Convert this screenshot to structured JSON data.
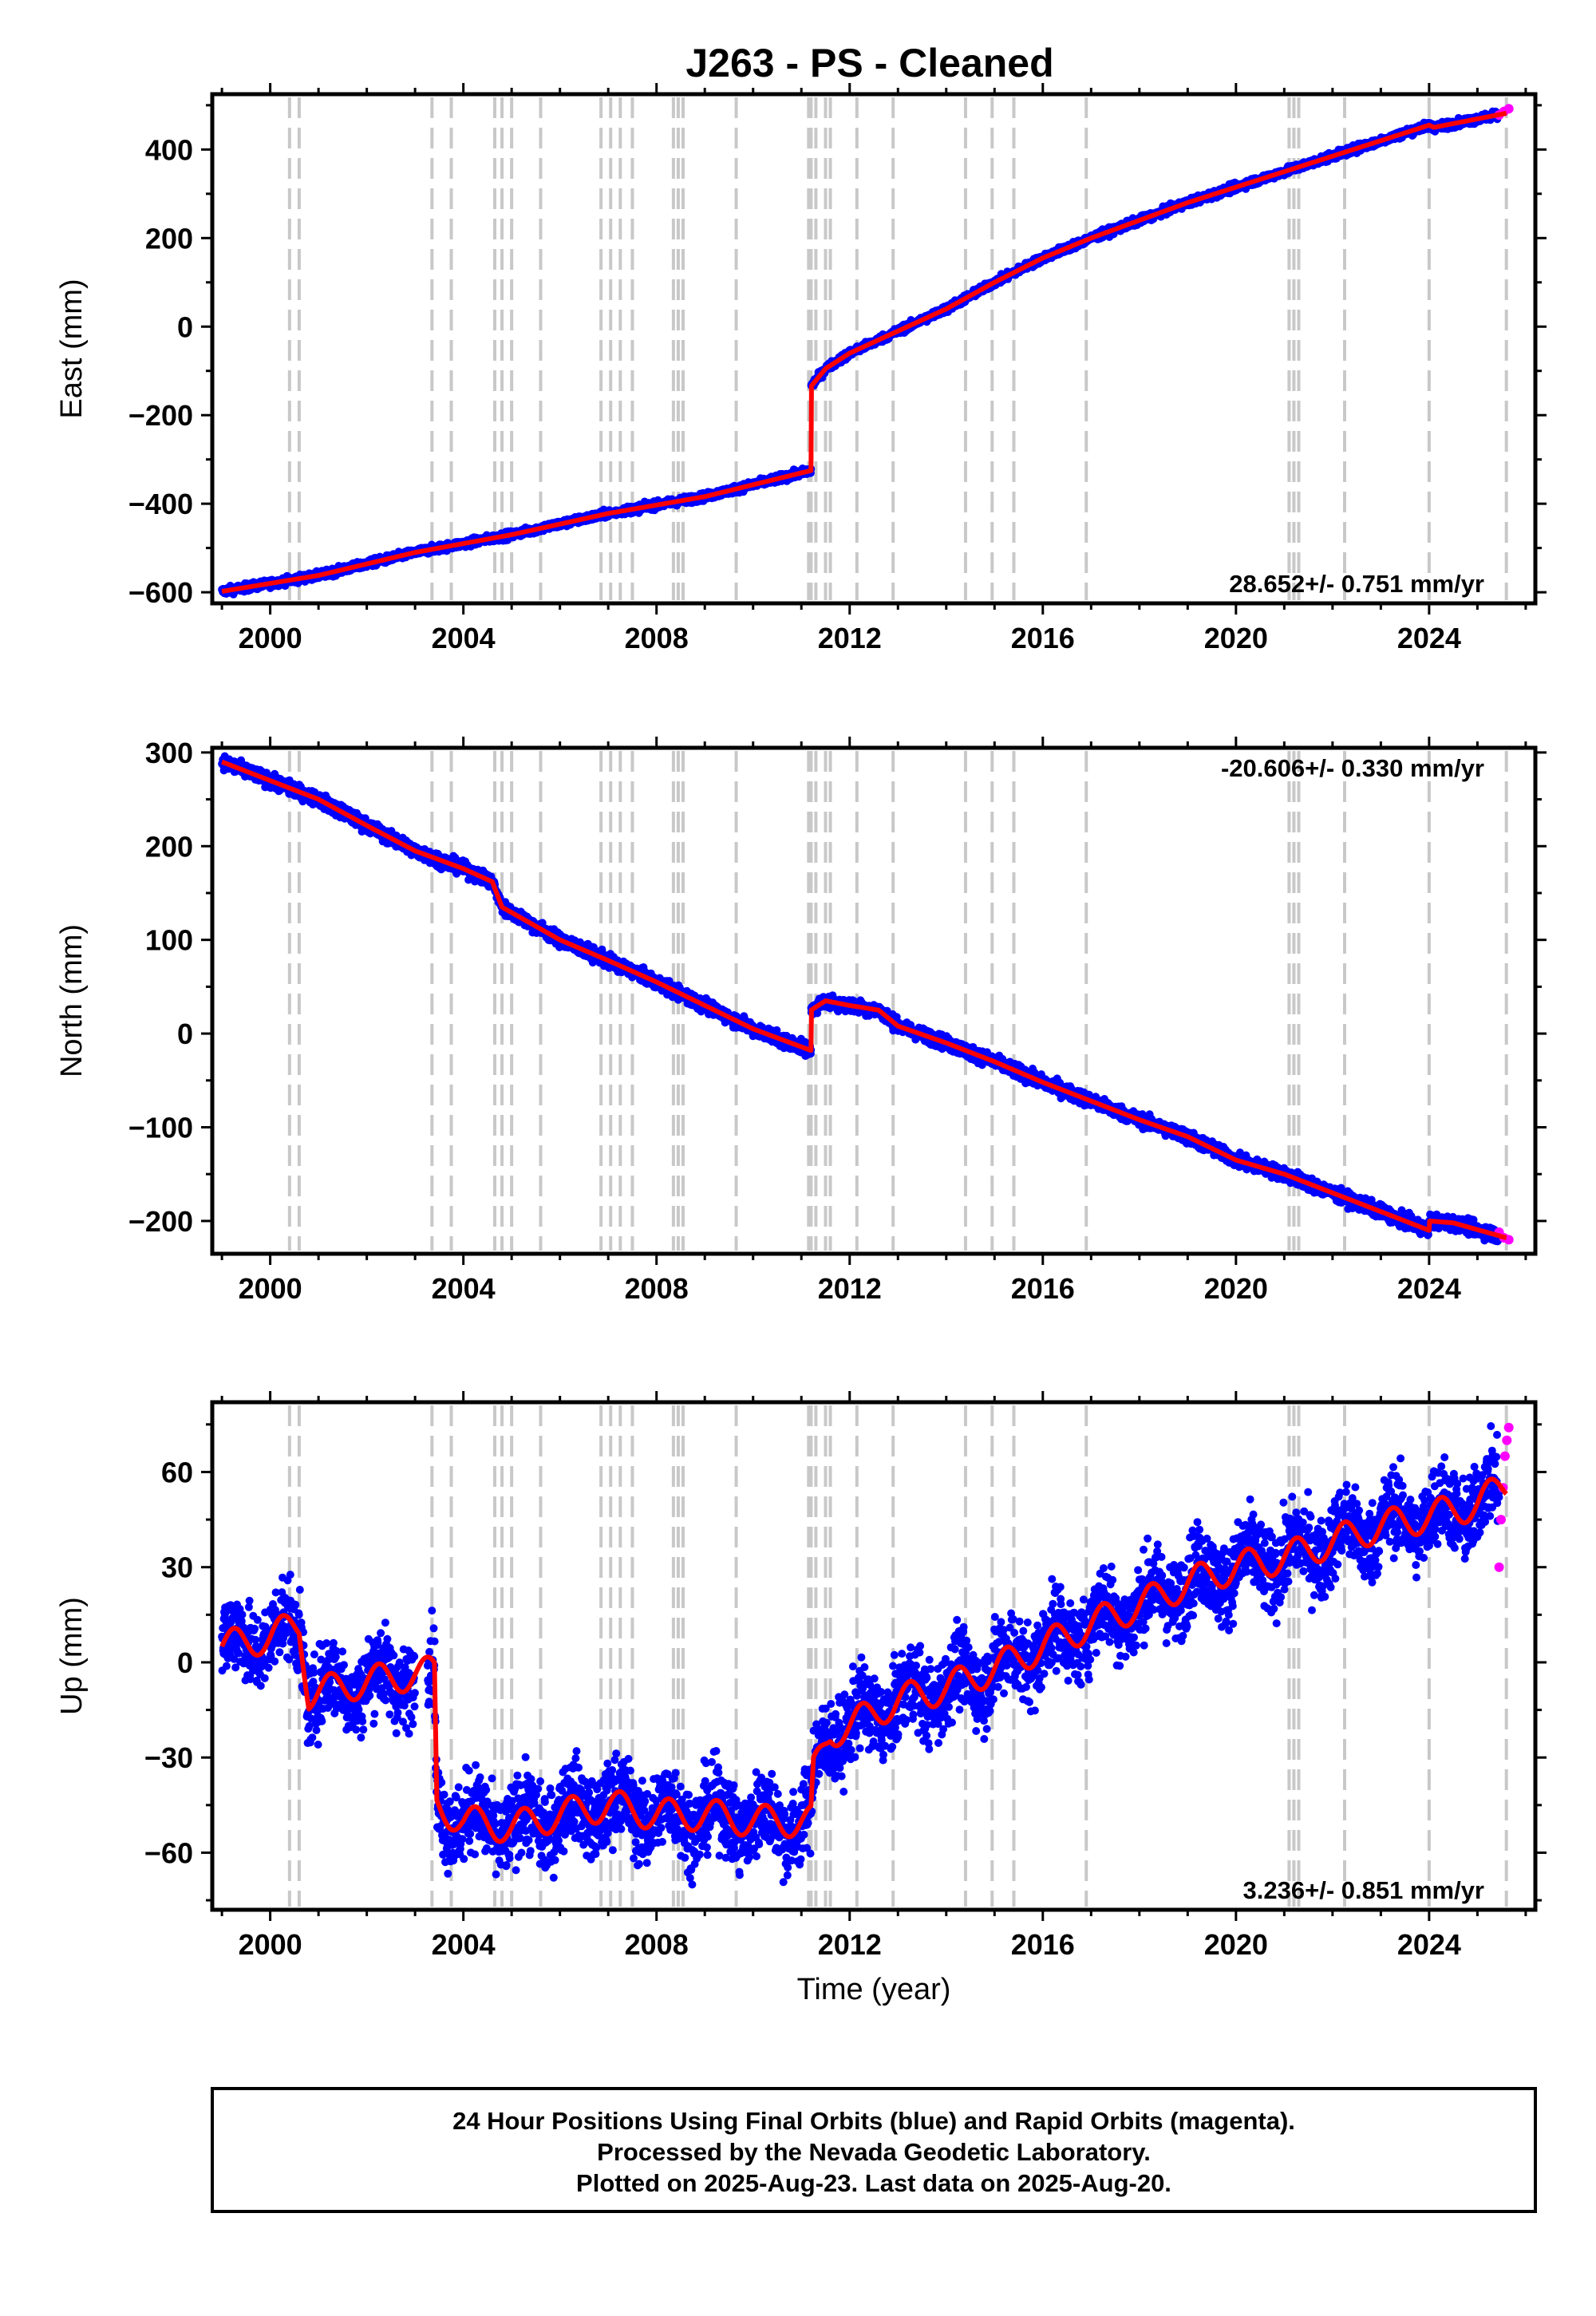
{
  "title": "J263  - PS - Cleaned",
  "caption": {
    "line1": "24 Hour Positions Using Final Orbits (blue) and Rapid Orbits (magenta).",
    "line2": "Processed by the Nevada Geodetic Laboratory.",
    "line3": "Plotted on 2025-Aug-23. Last data on 2025-Aug-20."
  },
  "colors": {
    "final": "#0000ff",
    "rapid": "#ff00ff",
    "model": "#ff0000",
    "event": "#c8c8c8"
  },
  "chart_data": [
    {
      "type": "scatter",
      "component": "east",
      "ylabel": "East (mm)",
      "xlabel": "",
      "xlim": [
        1998.8,
        2026.2
      ],
      "ylim": [
        -625,
        525
      ],
      "xticks": [
        2000,
        2004,
        2008,
        2012,
        2016,
        2020,
        2024
      ],
      "xtick_labels": [
        "2000",
        "2004",
        "2008",
        "2012",
        "2016",
        "2020",
        "2024"
      ],
      "yticks": [
        -600,
        -400,
        -200,
        0,
        200,
        400
      ],
      "ytick_labels": [
        "−600",
        "−400",
        "−200",
        "0",
        "200",
        "400"
      ],
      "rate_label": "28.652+/- 0.751 mm/yr",
      "rate_position": "bottom-right",
      "model": [
        [
          1999.0,
          -598
        ],
        [
          2001.0,
          -562
        ],
        [
          2003.0,
          -510
        ],
        [
          2005.0,
          -470
        ],
        [
          2007.0,
          -422
        ],
        [
          2009.0,
          -384
        ],
        [
          2011.2,
          -325
        ],
        [
          2011.2,
          -135
        ],
        [
          2011.5,
          -95
        ],
        [
          2012.0,
          -60
        ],
        [
          2013.0,
          -10
        ],
        [
          2014.0,
          40
        ],
        [
          2015.0,
          100
        ],
        [
          2016.0,
          155
        ],
        [
          2017.0,
          200
        ],
        [
          2018.0,
          240
        ],
        [
          2019.0,
          280
        ],
        [
          2020.0,
          315
        ],
        [
          2021.0,
          350
        ],
        [
          2022.0,
          385
        ],
        [
          2023.0,
          420
        ],
        [
          2024.0,
          455
        ],
        [
          2024.1,
          450
        ],
        [
          2025.6,
          482
        ]
      ],
      "noise_mm": 6,
      "rapid_range": [
        2025.45,
        2025.65
      ],
      "rapid_values": [
        478,
        486,
        492
      ]
    },
    {
      "type": "scatter",
      "component": "north",
      "ylabel": "North (mm)",
      "xlabel": "",
      "xlim": [
        1998.8,
        2026.2
      ],
      "ylim": [
        -235,
        305
      ],
      "xticks": [
        2000,
        2004,
        2008,
        2012,
        2016,
        2020,
        2024
      ],
      "xtick_labels": [
        "2000",
        "2004",
        "2008",
        "2012",
        "2016",
        "2020",
        "2024"
      ],
      "yticks": [
        -200,
        -100,
        0,
        100,
        200,
        300
      ],
      "ytick_labels": [
        "−200",
        "−100",
        "0",
        "100",
        "200",
        "300"
      ],
      "rate_label": "-20.606+/- 0.330 mm/yr",
      "rate_position": "top-right",
      "model": [
        [
          1999.0,
          290
        ],
        [
          2000.0,
          270
        ],
        [
          2001.0,
          250
        ],
        [
          2002.0,
          222
        ],
        [
          2003.0,
          195
        ],
        [
          2004.0,
          176
        ],
        [
          2004.6,
          162
        ],
        [
          2004.8,
          135
        ],
        [
          2006.0,
          100
        ],
        [
          2007.0,
          78
        ],
        [
          2008.0,
          55
        ],
        [
          2009.0,
          30
        ],
        [
          2010.0,
          5
        ],
        [
          2011.2,
          -18
        ],
        [
          2011.2,
          25
        ],
        [
          2011.5,
          35
        ],
        [
          2012.0,
          30
        ],
        [
          2012.6,
          25
        ],
        [
          2013.0,
          8
        ],
        [
          2014.0,
          -10
        ],
        [
          2015.0,
          -30
        ],
        [
          2016.0,
          -52
        ],
        [
          2017.0,
          -72
        ],
        [
          2018.0,
          -92
        ],
        [
          2019.0,
          -110
        ],
        [
          2020.0,
          -135
        ],
        [
          2021.0,
          -150
        ],
        [
          2022.0,
          -170
        ],
        [
          2023.0,
          -190
        ],
        [
          2024.0,
          -210
        ],
        [
          2024.0,
          -200
        ],
        [
          2024.5,
          -202
        ],
        [
          2025.6,
          -218
        ]
      ],
      "noise_mm": 5,
      "rapid_range": [
        2025.45,
        2025.65
      ],
      "rapid_values": [
        -212,
        -218,
        -220
      ]
    },
    {
      "type": "scatter",
      "component": "up",
      "ylabel": "Up (mm)",
      "xlabel": "Time (year)",
      "xlim": [
        1998.8,
        2026.2
      ],
      "ylim": [
        -78,
        82
      ],
      "xticks": [
        2000,
        2004,
        2008,
        2012,
        2016,
        2020,
        2024
      ],
      "xtick_labels": [
        "2000",
        "2004",
        "2008",
        "2012",
        "2016",
        "2020",
        "2024"
      ],
      "yticks": [
        -60,
        -30,
        0,
        30,
        60
      ],
      "ytick_labels": [
        "−60",
        "−30",
        "0",
        "30",
        "60"
      ],
      "rate_label": "3.236+/- 0.851 mm/yr",
      "rate_position": "bottom-right",
      "model": [
        [
          1999.0,
          5
        ],
        [
          2000.0,
          8
        ],
        [
          2000.6,
          12
        ],
        [
          2000.8,
          -10
        ],
        [
          2002.0,
          -6
        ],
        [
          2003.4,
          -3
        ],
        [
          2003.45,
          -45
        ],
        [
          2004.0,
          -50
        ],
        [
          2005.0,
          -52
        ],
        [
          2006.0,
          -48
        ],
        [
          2007.0,
          -45
        ],
        [
          2008.0,
          -48
        ],
        [
          2009.0,
          -48
        ],
        [
          2010.0,
          -50
        ],
        [
          2011.2,
          -50
        ],
        [
          2011.25,
          -35
        ],
        [
          2011.6,
          -22
        ],
        [
          2012.0,
          -20
        ],
        [
          2013.0,
          -12
        ],
        [
          2014.0,
          -8
        ],
        [
          2015.0,
          -2
        ],
        [
          2016.0,
          5
        ],
        [
          2017.0,
          12
        ],
        [
          2018.0,
          18
        ],
        [
          2019.0,
          25
        ],
        [
          2020.0,
          30
        ],
        [
          2021.0,
          33
        ],
        [
          2022.0,
          38
        ],
        [
          2023.0,
          43
        ],
        [
          2024.0,
          46
        ],
        [
          2025.0,
          50
        ],
        [
          2025.6,
          56
        ]
      ],
      "seasonal_amp_mm": 5,
      "noise_mm": 9,
      "rapid_range": [
        2025.45,
        2025.65
      ],
      "rapid_values": [
        30,
        45,
        55,
        65,
        70,
        74
      ]
    }
  ],
  "event_lines": [
    2000.4,
    2000.6,
    2003.35,
    2003.75,
    2004.65,
    2004.8,
    2005.0,
    2005.6,
    2006.85,
    2007.05,
    2007.25,
    2007.5,
    2008.35,
    2008.45,
    2008.55,
    2009.65,
    2011.15,
    2011.2,
    2011.3,
    2011.5,
    2011.6,
    2012.15,
    2012.9,
    2014.4,
    2014.95,
    2015.4,
    2016.9,
    2021.1,
    2021.2,
    2021.3,
    2022.25,
    2024.0,
    2025.6
  ]
}
